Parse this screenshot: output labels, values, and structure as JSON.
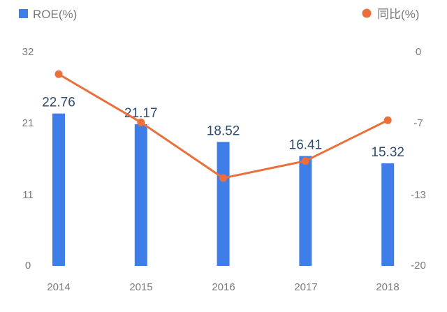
{
  "chart_data": {
    "type": "bar+line",
    "categories": [
      "2014",
      "2015",
      "2016",
      "2017",
      "2018"
    ],
    "series": [
      {
        "name": "ROE(%)",
        "type": "bar",
        "axis": "left",
        "values": [
          22.76,
          21.17,
          18.52,
          16.41,
          15.32
        ],
        "labels": [
          "22.76",
          "21.17",
          "18.52",
          "16.41",
          "15.32"
        ],
        "color": "#3f7ee8"
      },
      {
        "name": "同比(%)",
        "type": "line",
        "axis": "right",
        "values": [
          -2.1,
          -6.6,
          -11.8,
          -10.2,
          -6.4
        ],
        "color": "#ea6f3b"
      }
    ],
    "left_axis": {
      "min": 0,
      "max": 32,
      "ticks": [
        "32",
        "21",
        "11",
        "0"
      ],
      "tick_values": [
        32,
        21,
        11,
        0
      ]
    },
    "right_axis": {
      "min": -20,
      "max": 0,
      "ticks": [
        "0",
        "-7",
        "-13",
        "-20"
      ],
      "tick_values": [
        0,
        -7,
        -13,
        -20
      ]
    },
    "legend": {
      "left": {
        "label": "ROE(%)",
        "marker": "square"
      },
      "right": {
        "label": "同比(%)",
        "marker": "circle"
      }
    },
    "grid": false
  }
}
